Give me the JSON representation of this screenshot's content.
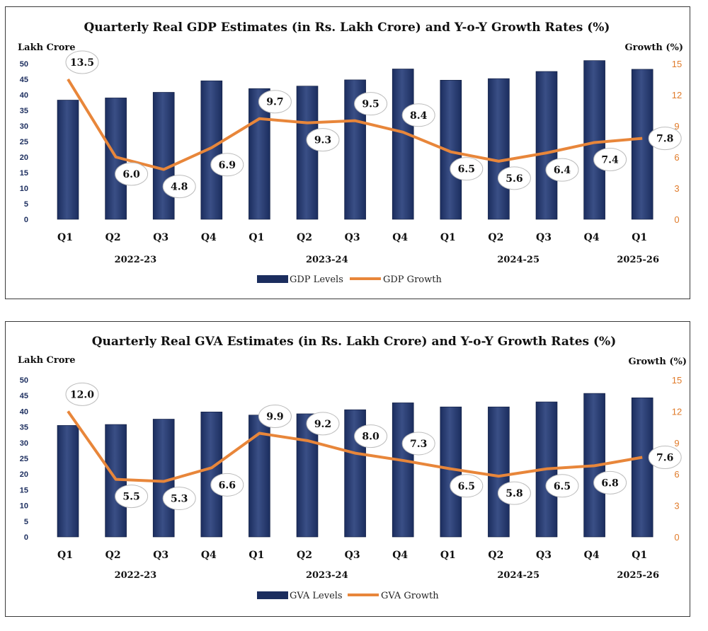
{
  "colors": {
    "bar": "#1b2d5e",
    "bar_highlight": "#3a4f86",
    "line": "#e8863a",
    "right_axis": "#e07b2a"
  },
  "chart_data": [
    {
      "type": "bar+line",
      "title": "Quarterly Real GDP Estimates (in Rs. Lakh Crore) and Y-o-Y Growth Rates (%)",
      "ylabel_left": "Lakh Crore",
      "ylabel_right": "Growth (%)",
      "categories": [
        "Q1",
        "Q2",
        "Q3",
        "Q4",
        "Q1",
        "Q2",
        "Q3",
        "Q4",
        "Q1",
        "Q2",
        "Q3",
        "Q4",
        "Q1"
      ],
      "years": [
        {
          "label": "2022-23",
          "center_index": 1.5
        },
        {
          "label": "2023-24",
          "center_index": 5.5
        },
        {
          "label": "2024-25",
          "center_index": 9.5
        },
        {
          "label": "2025-26",
          "center_index": 12.0
        }
      ],
      "yticks_left": [
        "0",
        "5",
        "10",
        "15",
        "20",
        "25",
        "30",
        "35",
        "40",
        "45",
        "50"
      ],
      "yticks_right": [
        "0",
        "3",
        "6",
        "9",
        "12",
        "15"
      ],
      "ylim_left": [
        0,
        50
      ],
      "ylim_right": [
        0,
        15
      ],
      "series": [
        {
          "name": "GDP Levels",
          "type": "bar",
          "axis": "left",
          "values": [
            38.3,
            39.0,
            40.8,
            44.5,
            42.0,
            42.8,
            44.8,
            48.3,
            44.7,
            45.2,
            47.5,
            51.0,
            48.2
          ]
        },
        {
          "name": "GDP Growth",
          "type": "line",
          "axis": "right",
          "values": [
            13.5,
            6.0,
            4.8,
            6.9,
            9.7,
            9.3,
            9.5,
            8.4,
            6.5,
            5.6,
            6.4,
            7.4,
            7.8
          ],
          "labels": [
            "13.5",
            "6.0",
            "4.8",
            "6.9",
            "9.7",
            "9.3",
            "9.5",
            "8.4",
            "6.5",
            "5.6",
            "6.4",
            "7.4",
            "7.8"
          ]
        }
      ],
      "legend": [
        "GDP Levels",
        "GDP Growth"
      ]
    },
    {
      "type": "bar+line",
      "title": "Quarterly Real GVA Estimates (in Rs. Lakh Crore) and Y-o-Y Growth Rates (%)",
      "ylabel_left": "Lakh Crore",
      "ylabel_right": "Growth (%)",
      "categories": [
        "Q1",
        "Q2",
        "Q3",
        "Q4",
        "Q1",
        "Q2",
        "Q3",
        "Q4",
        "Q1",
        "Q2",
        "Q3",
        "Q4",
        "Q1"
      ],
      "years": [
        {
          "label": "2022-23",
          "center_index": 1.5
        },
        {
          "label": "2023-24",
          "center_index": 5.5
        },
        {
          "label": "2024-25",
          "center_index": 9.5
        },
        {
          "label": "2025-26",
          "center_index": 12.0
        }
      ],
      "yticks_left": [
        "0",
        "5",
        "10",
        "15",
        "20",
        "25",
        "30",
        "35",
        "40",
        "45",
        "50"
      ],
      "yticks_right": [
        "0",
        "3",
        "6",
        "9",
        "12",
        "15"
      ],
      "ylim_left": [
        0,
        50
      ],
      "ylim_right": [
        0,
        15
      ],
      "series": [
        {
          "name": "GVA Levels",
          "type": "bar",
          "axis": "left",
          "values": [
            35.5,
            35.8,
            37.5,
            39.8,
            38.8,
            39.2,
            40.5,
            42.7,
            41.4,
            41.4,
            43.0,
            45.7,
            44.3
          ]
        },
        {
          "name": "GVA Growth",
          "type": "line",
          "axis": "right",
          "values": [
            12.0,
            5.5,
            5.3,
            6.6,
            9.9,
            9.2,
            8.0,
            7.3,
            6.5,
            5.8,
            6.5,
            6.8,
            7.6
          ],
          "labels": [
            "12.0",
            "5.5",
            "5.3",
            "6.6",
            "9.9",
            "9.2",
            "8.0",
            "7.3",
            "6.5",
            "5.8",
            "6.5",
            "6.8",
            "7.6"
          ]
        }
      ],
      "legend": [
        "GVA Levels",
        "GVA Growth"
      ]
    }
  ]
}
